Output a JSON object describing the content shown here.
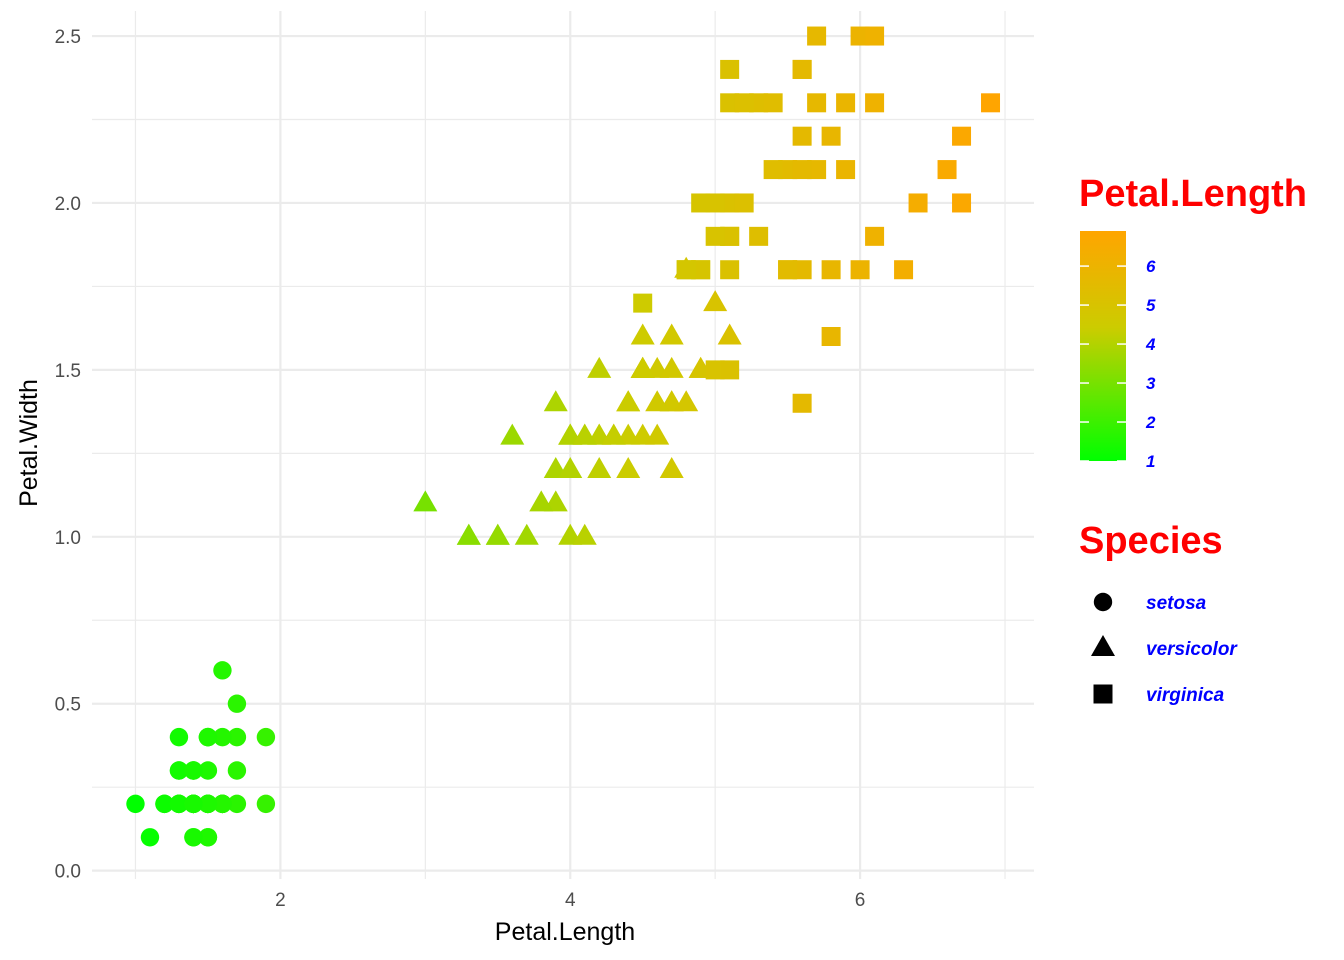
{
  "colors": {
    "low": "#00ff00",
    "high": "#ffa500",
    "legend_title": "#ff0000",
    "legend_text": "#0000ff",
    "grid": "#ebebeb"
  },
  "chart_data": {
    "type": "scatter",
    "xlabel": "Petal.Length",
    "ylabel": "Petal.Width",
    "xlim": [
      0.7,
      7.2
    ],
    "ylim": [
      -0.025,
      2.575
    ],
    "x_ticks": [
      2,
      4,
      6
    ],
    "x_tick_labels": [
      "2",
      "4",
      "6"
    ],
    "y_ticks": [
      0,
      0.5,
      1,
      1.5,
      2,
      2.5
    ],
    "y_tick_labels": [
      "0.0",
      "0.5",
      "1.0",
      "1.5",
      "2.0",
      "2.5"
    ],
    "grid": true,
    "color_by": "Petal.Length",
    "shape_by": "Species",
    "colorbar": {
      "title": "Petal.Length",
      "range": [
        1,
        6.9
      ],
      "ticks": [
        1,
        2,
        3,
        4,
        5,
        6
      ],
      "tick_labels": [
        "1",
        "2",
        "3",
        "4",
        "5",
        "6"
      ]
    },
    "shape_legend": {
      "title": "Species",
      "entries": [
        {
          "label": "setosa",
          "shape": "circle"
        },
        {
          "label": "versicolor",
          "shape": "triangle"
        },
        {
          "label": "virginica",
          "shape": "square"
        }
      ]
    },
    "legend_position": "right",
    "series": [
      {
        "name": "setosa",
        "shape": "circle",
        "points": [
          [
            1.4,
            0.2
          ],
          [
            1.4,
            0.2
          ],
          [
            1.3,
            0.2
          ],
          [
            1.5,
            0.2
          ],
          [
            1.4,
            0.2
          ],
          [
            1.7,
            0.4
          ],
          [
            1.4,
            0.3
          ],
          [
            1.5,
            0.2
          ],
          [
            1.4,
            0.2
          ],
          [
            1.5,
            0.1
          ],
          [
            1.5,
            0.2
          ],
          [
            1.6,
            0.2
          ],
          [
            1.4,
            0.1
          ],
          [
            1.1,
            0.1
          ],
          [
            1.2,
            0.2
          ],
          [
            1.5,
            0.4
          ],
          [
            1.3,
            0.4
          ],
          [
            1.4,
            0.3
          ],
          [
            1.7,
            0.3
          ],
          [
            1.5,
            0.3
          ],
          [
            1.7,
            0.2
          ],
          [
            1.5,
            0.4
          ],
          [
            1.0,
            0.2
          ],
          [
            1.7,
            0.5
          ],
          [
            1.9,
            0.2
          ],
          [
            1.6,
            0.2
          ],
          [
            1.6,
            0.4
          ],
          [
            1.5,
            0.2
          ],
          [
            1.4,
            0.2
          ],
          [
            1.6,
            0.2
          ],
          [
            1.6,
            0.2
          ],
          [
            1.5,
            0.4
          ],
          [
            1.5,
            0.1
          ],
          [
            1.4,
            0.2
          ],
          [
            1.5,
            0.2
          ],
          [
            1.2,
            0.2
          ],
          [
            1.3,
            0.2
          ],
          [
            1.4,
            0.1
          ],
          [
            1.3,
            0.2
          ],
          [
            1.5,
            0.2
          ],
          [
            1.3,
            0.3
          ],
          [
            1.3,
            0.3
          ],
          [
            1.3,
            0.2
          ],
          [
            1.6,
            0.6
          ],
          [
            1.9,
            0.4
          ],
          [
            1.4,
            0.3
          ],
          [
            1.6,
            0.2
          ],
          [
            1.4,
            0.2
          ],
          [
            1.5,
            0.2
          ],
          [
            1.4,
            0.2
          ]
        ]
      },
      {
        "name": "versicolor",
        "shape": "triangle",
        "points": [
          [
            4.7,
            1.4
          ],
          [
            4.5,
            1.5
          ],
          [
            4.9,
            1.5
          ],
          [
            4.0,
            1.3
          ],
          [
            4.6,
            1.5
          ],
          [
            4.5,
            1.3
          ],
          [
            4.7,
            1.6
          ],
          [
            3.3,
            1.0
          ],
          [
            4.6,
            1.3
          ],
          [
            3.9,
            1.4
          ],
          [
            3.5,
            1.0
          ],
          [
            4.2,
            1.5
          ],
          [
            4.0,
            1.0
          ],
          [
            4.7,
            1.4
          ],
          [
            3.6,
            1.3
          ],
          [
            4.4,
            1.4
          ],
          [
            4.5,
            1.5
          ],
          [
            4.1,
            1.0
          ],
          [
            4.5,
            1.5
          ],
          [
            3.9,
            1.1
          ],
          [
            4.8,
            1.8
          ],
          [
            4.0,
            1.3
          ],
          [
            4.9,
            1.5
          ],
          [
            4.7,
            1.2
          ],
          [
            4.3,
            1.3
          ],
          [
            4.4,
            1.4
          ],
          [
            4.8,
            1.4
          ],
          [
            5.0,
            1.7
          ],
          [
            4.5,
            1.5
          ],
          [
            3.5,
            1.0
          ],
          [
            3.8,
            1.1
          ],
          [
            3.7,
            1.0
          ],
          [
            3.9,
            1.2
          ],
          [
            5.1,
            1.6
          ],
          [
            4.5,
            1.5
          ],
          [
            4.5,
            1.6
          ],
          [
            4.7,
            1.5
          ],
          [
            4.4,
            1.3
          ],
          [
            4.1,
            1.3
          ],
          [
            4.0,
            1.3
          ],
          [
            4.4,
            1.2
          ],
          [
            4.6,
            1.4
          ],
          [
            4.0,
            1.2
          ],
          [
            3.3,
            1.0
          ],
          [
            4.2,
            1.3
          ],
          [
            4.2,
            1.2
          ],
          [
            4.2,
            1.3
          ],
          [
            4.3,
            1.3
          ],
          [
            3.0,
            1.1
          ],
          [
            4.1,
            1.3
          ]
        ]
      },
      {
        "name": "virginica",
        "shape": "square",
        "points": [
          [
            6.0,
            2.5
          ],
          [
            5.1,
            1.9
          ],
          [
            5.9,
            2.1
          ],
          [
            5.6,
            1.8
          ],
          [
            5.8,
            2.2
          ],
          [
            6.6,
            2.1
          ],
          [
            4.5,
            1.7
          ],
          [
            6.3,
            1.8
          ],
          [
            5.8,
            1.8
          ],
          [
            6.1,
            2.5
          ],
          [
            5.1,
            2.0
          ],
          [
            5.3,
            1.9
          ],
          [
            5.5,
            2.1
          ],
          [
            5.0,
            2.0
          ],
          [
            5.1,
            2.4
          ],
          [
            5.3,
            2.3
          ],
          [
            5.5,
            1.8
          ],
          [
            6.7,
            2.2
          ],
          [
            6.9,
            2.3
          ],
          [
            5.0,
            1.5
          ],
          [
            5.7,
            2.3
          ],
          [
            4.9,
            2.0
          ],
          [
            6.7,
            2.0
          ],
          [
            4.9,
            1.8
          ],
          [
            5.7,
            2.1
          ],
          [
            6.0,
            1.8
          ],
          [
            4.8,
            1.8
          ],
          [
            4.9,
            1.8
          ],
          [
            5.6,
            2.1
          ],
          [
            5.8,
            1.6
          ],
          [
            6.1,
            1.9
          ],
          [
            6.4,
            2.0
          ],
          [
            5.6,
            2.2
          ],
          [
            5.1,
            1.5
          ],
          [
            5.6,
            1.4
          ],
          [
            6.1,
            2.3
          ],
          [
            5.6,
            2.4
          ],
          [
            5.5,
            1.8
          ],
          [
            4.8,
            1.8
          ],
          [
            5.4,
            2.1
          ],
          [
            5.6,
            2.4
          ],
          [
            5.1,
            2.3
          ],
          [
            5.1,
            1.9
          ],
          [
            5.9,
            2.3
          ],
          [
            5.7,
            2.5
          ],
          [
            5.2,
            2.3
          ],
          [
            5.0,
            1.9
          ],
          [
            5.2,
            2.0
          ],
          [
            5.4,
            2.3
          ],
          [
            5.1,
            1.8
          ]
        ]
      }
    ]
  }
}
